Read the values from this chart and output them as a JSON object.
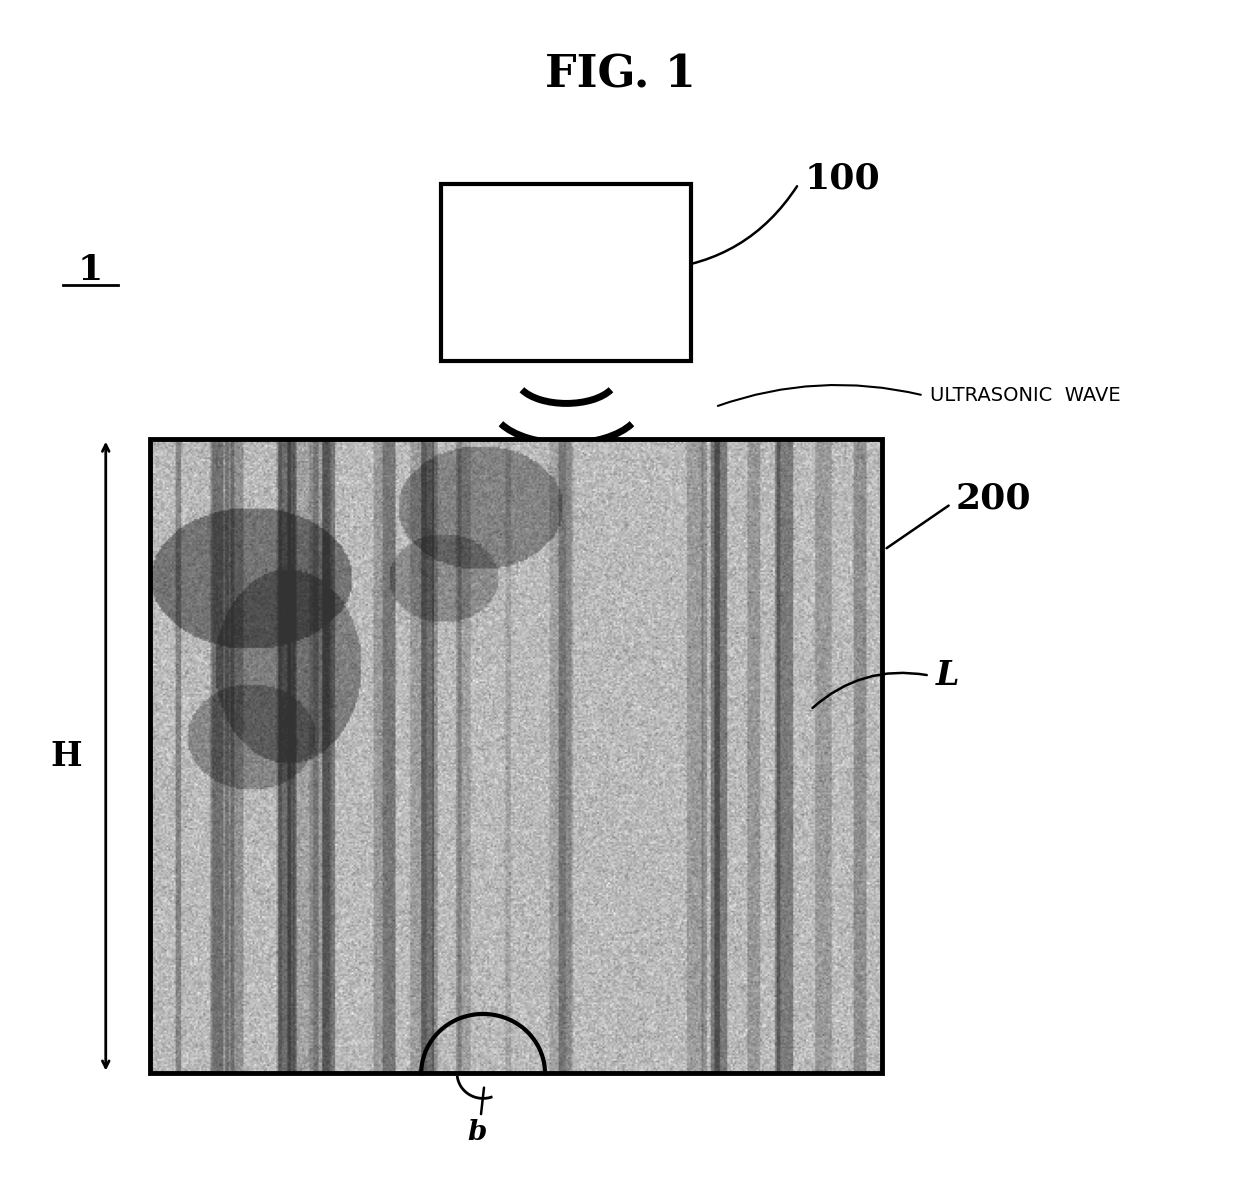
{
  "title": "FIG. 1",
  "background_color": "#ffffff",
  "label_1": "1",
  "label_100": "100",
  "label_200": "200",
  "label_L": "L",
  "label_H": "H",
  "label_b": "b",
  "label_ultrasonic": "ULTRASONIC  WAVE",
  "fig_width": 12.4,
  "fig_height": 11.91
}
